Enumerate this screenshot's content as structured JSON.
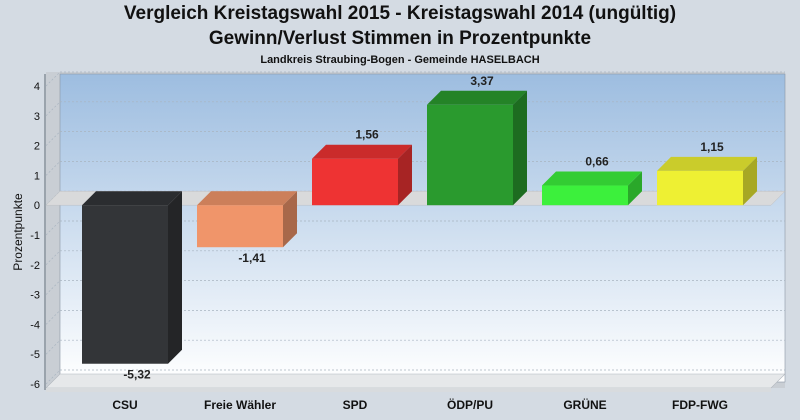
{
  "chart_data": {
    "type": "bar",
    "title": "Vergleich Kreistagswahl 2015 - Kreistagswahl 2014 (ungültig)",
    "subtitle": "Gewinn/Verlust Stimmen in Prozentpunkte",
    "caption": "Landkreis Straubing-Bogen - Gemeinde HASELBACH",
    "ylabel": "Prozentpunkte",
    "xlabel": "",
    "categories": [
      "CSU",
      "Freie Wähler",
      "SPD",
      "ÖDP/PU",
      "GRÜNE",
      "FDP-FWG"
    ],
    "values": [
      -5.32,
      -1.41,
      1.56,
      3.37,
      0.66,
      1.15
    ],
    "value_labels": [
      "-5,32",
      "-1,41",
      "1,56",
      "3,37",
      "0,66",
      "1,15"
    ],
    "colors": [
      "#333538",
      "#f0956a",
      "#ee3333",
      "#2a9a2e",
      "#3cf03c",
      "#eef033"
    ],
    "ylim": [
      -6,
      4
    ],
    "yticks": [
      -6,
      -5,
      -4,
      -3,
      -2,
      -1,
      0,
      1,
      2,
      3,
      4
    ],
    "grid": true,
    "bar_style": "3d"
  }
}
